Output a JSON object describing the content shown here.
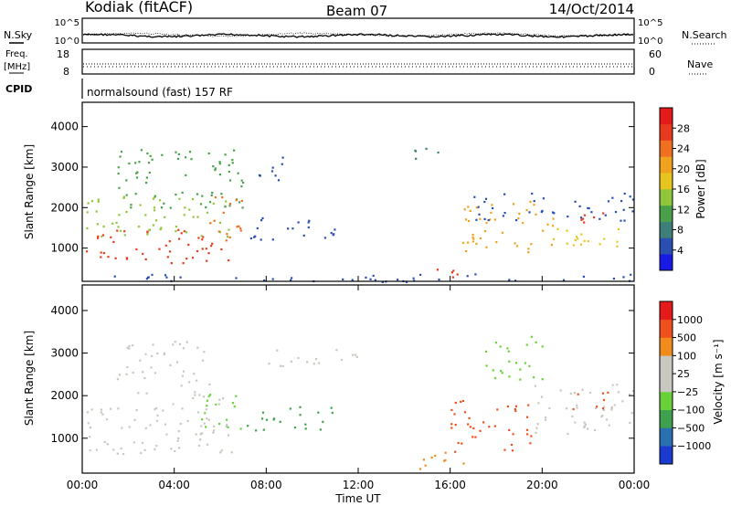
{
  "header": {
    "radar": "Kodiak (fitACF)",
    "beam": "Beam 07",
    "date": "14/Oct/2014"
  },
  "status_panels": {
    "nsky_label": "N.Sky",
    "nsearch_label": "N.Search",
    "nsky_ticks": [
      "10^5",
      "10^0"
    ],
    "nsearch_ticks": [
      "10^5",
      "10^0"
    ],
    "freq_label_line1": "Freq.",
    "freq_label_line2": "[MHz]",
    "freq_ticks": [
      "18",
      "8"
    ],
    "nave_label": "Nave",
    "nave_ticks": [
      "60",
      "0"
    ],
    "cpid_label": "CPID",
    "cpid_text": "normalsound (fast) 157 RF"
  },
  "colors": {
    "power_scale": [
      "#1a1ae6",
      "#2a4fb0",
      "#3f7f7a",
      "#4aa04a",
      "#8fc63a",
      "#e6c61e",
      "#f0a21e",
      "#f07020",
      "#e83a1e",
      "#e61a1a"
    ],
    "velocity_scale": [
      "#e61a1a",
      "#f0501e",
      "#f08c1e",
      "#c8c8c0",
      "#c8c8c0",
      "#6ad03a",
      "#3fa050",
      "#2a6fb0",
      "#1a3ad0"
    ]
  },
  "chart_data": [
    {
      "type": "heatmap",
      "name": "power-panel",
      "ylabel": "Slant Range [km]",
      "xlabel": "",
      "x_range_hours": [
        0,
        24
      ],
      "ylim": [
        180,
        4600
      ],
      "y_ticks": [
        "4000",
        "3000",
        "2000",
        "1000"
      ],
      "y_tick_values": [
        4000,
        3000,
        2000,
        1000
      ],
      "colorbar_label": "Power [dB]",
      "colorbar_ticks": [
        "28",
        "24",
        "20",
        "16",
        "12",
        "8",
        "4"
      ],
      "colorbar_range": [
        0,
        32
      ],
      "regions": [
        {
          "t0": 0.0,
          "t1": 6.5,
          "r0": 650,
          "r1": 1500,
          "level": 28
        },
        {
          "t0": 0.0,
          "t1": 6.5,
          "r0": 1300,
          "r1": 2300,
          "level": 14
        },
        {
          "t0": 1.5,
          "t1": 7.0,
          "r0": 2000,
          "r1": 3500,
          "level": 10
        },
        {
          "t0": 5.5,
          "t1": 7.0,
          "r0": 1200,
          "r1": 2500,
          "level": 24
        },
        {
          "t0": 7.0,
          "t1": 11.0,
          "r0": 1200,
          "r1": 1800,
          "level": 6
        },
        {
          "t0": 7.5,
          "t1": 9.0,
          "r0": 2700,
          "r1": 3300,
          "level": 4
        },
        {
          "t0": 13.5,
          "t1": 15.5,
          "r0": 3200,
          "r1": 3500,
          "level": 8
        },
        {
          "t0": 14.5,
          "t1": 16.5,
          "r0": 300,
          "r1": 600,
          "level": 28
        },
        {
          "t0": 16.5,
          "t1": 20.5,
          "r0": 900,
          "r1": 2200,
          "level": 22
        },
        {
          "t0": 17.0,
          "t1": 24.0,
          "r0": 1700,
          "r1": 2400,
          "level": 6
        },
        {
          "t0": 20.0,
          "t1": 24.0,
          "r0": 1000,
          "r1": 1500,
          "level": 18
        },
        {
          "t0": 21.5,
          "t1": 23.5,
          "r0": 1600,
          "r1": 1950,
          "level": 26
        },
        {
          "t0": 0.0,
          "t1": 24.0,
          "r0": 180,
          "r1": 380,
          "level": 5
        }
      ]
    },
    {
      "type": "heatmap",
      "name": "velocity-panel",
      "ylabel": "Slant Range [km]",
      "xlabel": "Time UT",
      "x_range_hours": [
        0,
        24
      ],
      "x_ticks": [
        "00:00",
        "04:00",
        "08:00",
        "12:00",
        "16:00",
        "20:00",
        "00:00"
      ],
      "x_tick_values": [
        0,
        4,
        8,
        12,
        16,
        20,
        24
      ],
      "ylim": [
        180,
        4600
      ],
      "y_ticks": [
        "4000",
        "3000",
        "2000",
        "1000"
      ],
      "y_tick_values": [
        4000,
        3000,
        2000,
        1000
      ],
      "colorbar_label": "Velocity [m s⁻¹]",
      "colorbar_ticks": [
        "1000",
        "500",
        "100",
        "25",
        "−25",
        "−100",
        "−500",
        "−1000"
      ],
      "regions": [
        {
          "t0": 0.0,
          "t1": 6.5,
          "r0": 650,
          "r1": 2000,
          "vlevel": 4
        },
        {
          "t0": 1.5,
          "t1": 5.5,
          "r0": 2000,
          "r1": 3300,
          "vlevel": 3
        },
        {
          "t0": 5.0,
          "t1": 7.0,
          "r0": 1200,
          "r1": 2100,
          "vlevel": 5
        },
        {
          "t0": 7.0,
          "t1": 11.0,
          "r0": 1200,
          "r1": 1800,
          "vlevel": 6
        },
        {
          "t0": 8.0,
          "t1": 12.5,
          "r0": 2700,
          "r1": 3100,
          "vlevel": 4
        },
        {
          "t0": 14.5,
          "t1": 17.0,
          "r0": 250,
          "r1": 700,
          "vlevel": 2
        },
        {
          "t0": 16.0,
          "t1": 19.5,
          "r0": 700,
          "r1": 2000,
          "vlevel": 1
        },
        {
          "t0": 17.5,
          "t1": 20.0,
          "r0": 2400,
          "r1": 3500,
          "vlevel": 5
        },
        {
          "t0": 19.5,
          "t1": 24.0,
          "r0": 1100,
          "r1": 2300,
          "vlevel": 4
        },
        {
          "t0": 21.0,
          "t1": 23.0,
          "r0": 1700,
          "r1": 2100,
          "vlevel": 1
        }
      ]
    }
  ]
}
